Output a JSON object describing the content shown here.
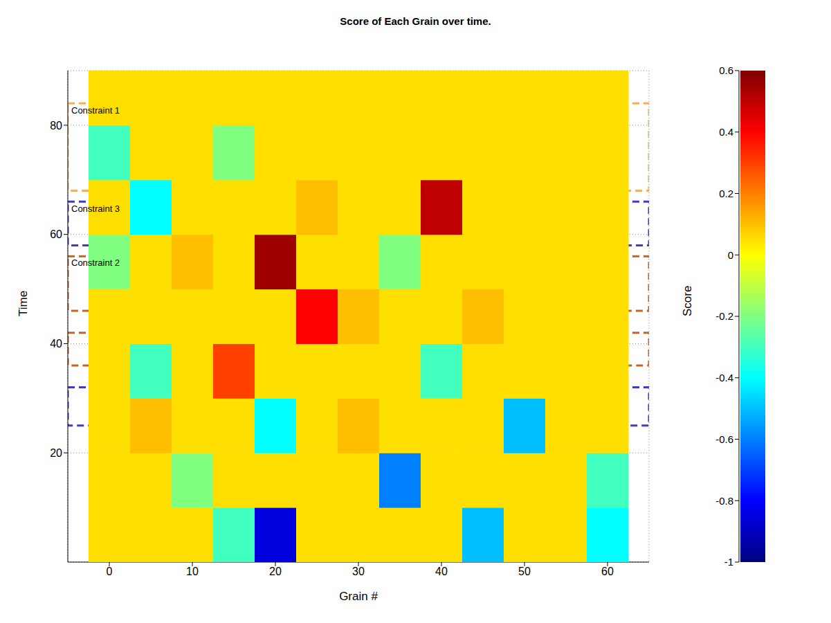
{
  "chart_data": {
    "type": "heatmap",
    "title": "Score of Each Grain over time.",
    "x_label": "Grain #",
    "y_label": "Time",
    "x": [
      0,
      5,
      10,
      15,
      20,
      25,
      30,
      35,
      40,
      45,
      50,
      55,
      60
    ],
    "y": [
      5,
      15,
      25,
      35,
      45,
      55,
      65,
      75,
      85
    ],
    "cells": [
      [
        0.05,
        0.05,
        0.05,
        -0.3,
        -0.85,
        0.05,
        0.05,
        0.05,
        0.05,
        -0.5,
        0.05,
        0.05,
        -0.4
      ],
      [
        0.05,
        0.05,
        -0.2,
        0.05,
        0.05,
        0.05,
        0.05,
        -0.6,
        0.05,
        0.05,
        0.05,
        0.05,
        -0.3
      ],
      [
        0.05,
        0.1,
        0.05,
        0.05,
        -0.4,
        0.05,
        0.1,
        0.05,
        0.05,
        0.05,
        -0.5,
        0.05,
        0.05
      ],
      [
        0.05,
        -0.3,
        0.05,
        0.3,
        0.05,
        0.05,
        0.05,
        0.05,
        -0.3,
        0.05,
        0.05,
        0.05,
        0.05
      ],
      [
        0.05,
        0.05,
        0.05,
        0.05,
        0.05,
        0.4,
        0.1,
        0.05,
        0.05,
        0.1,
        0.05,
        0.05,
        0.05
      ],
      [
        -0.2,
        0.05,
        0.1,
        0.05,
        0.55,
        0.05,
        0.05,
        -0.2,
        0.05,
        0.05,
        0.05,
        0.05,
        0.05
      ],
      [
        0.05,
        -0.4,
        0.05,
        0.05,
        0.05,
        0.1,
        0.05,
        0.05,
        0.5,
        0.05,
        0.05,
        0.05,
        0.05
      ],
      [
        -0.3,
        0.05,
        0.05,
        -0.2,
        0.05,
        0.05,
        0.05,
        0.05,
        0.05,
        0.05,
        0.05,
        0.05,
        0.05
      ],
      [
        0.05,
        0.05,
        0.05,
        0.05,
        0.05,
        0.05,
        0.05,
        0.05,
        0.05,
        0.05,
        0.05,
        0.05,
        0.05
      ]
    ],
    "xlim": [
      -5,
      65
    ],
    "xticks": [
      0,
      10,
      20,
      30,
      40,
      50,
      60
    ],
    "ylim": [
      0,
      90
    ],
    "yticks": [
      20,
      40,
      60,
      80
    ],
    "colorbar": {
      "label": "Score",
      "range": [
        -1,
        0.6
      ],
      "ticks": [
        -1,
        -0.8,
        -0.6,
        -0.4,
        -0.2,
        0,
        0.2,
        0.4,
        0.6
      ]
    },
    "constraints": [
      {
        "name": "Constraint 1",
        "color": "#f0b060",
        "intervals": [
          [
            68,
            84
          ]
        ]
      },
      {
        "name": "Constraint 2",
        "color": "#c86420",
        "intervals": [
          [
            46,
            56
          ],
          [
            36,
            42
          ]
        ]
      },
      {
        "name": "Constraint 3",
        "color": "#3c3cc8",
        "intervals": [
          [
            58,
            66
          ],
          [
            25,
            32
          ]
        ]
      }
    ],
    "grid": true
  }
}
